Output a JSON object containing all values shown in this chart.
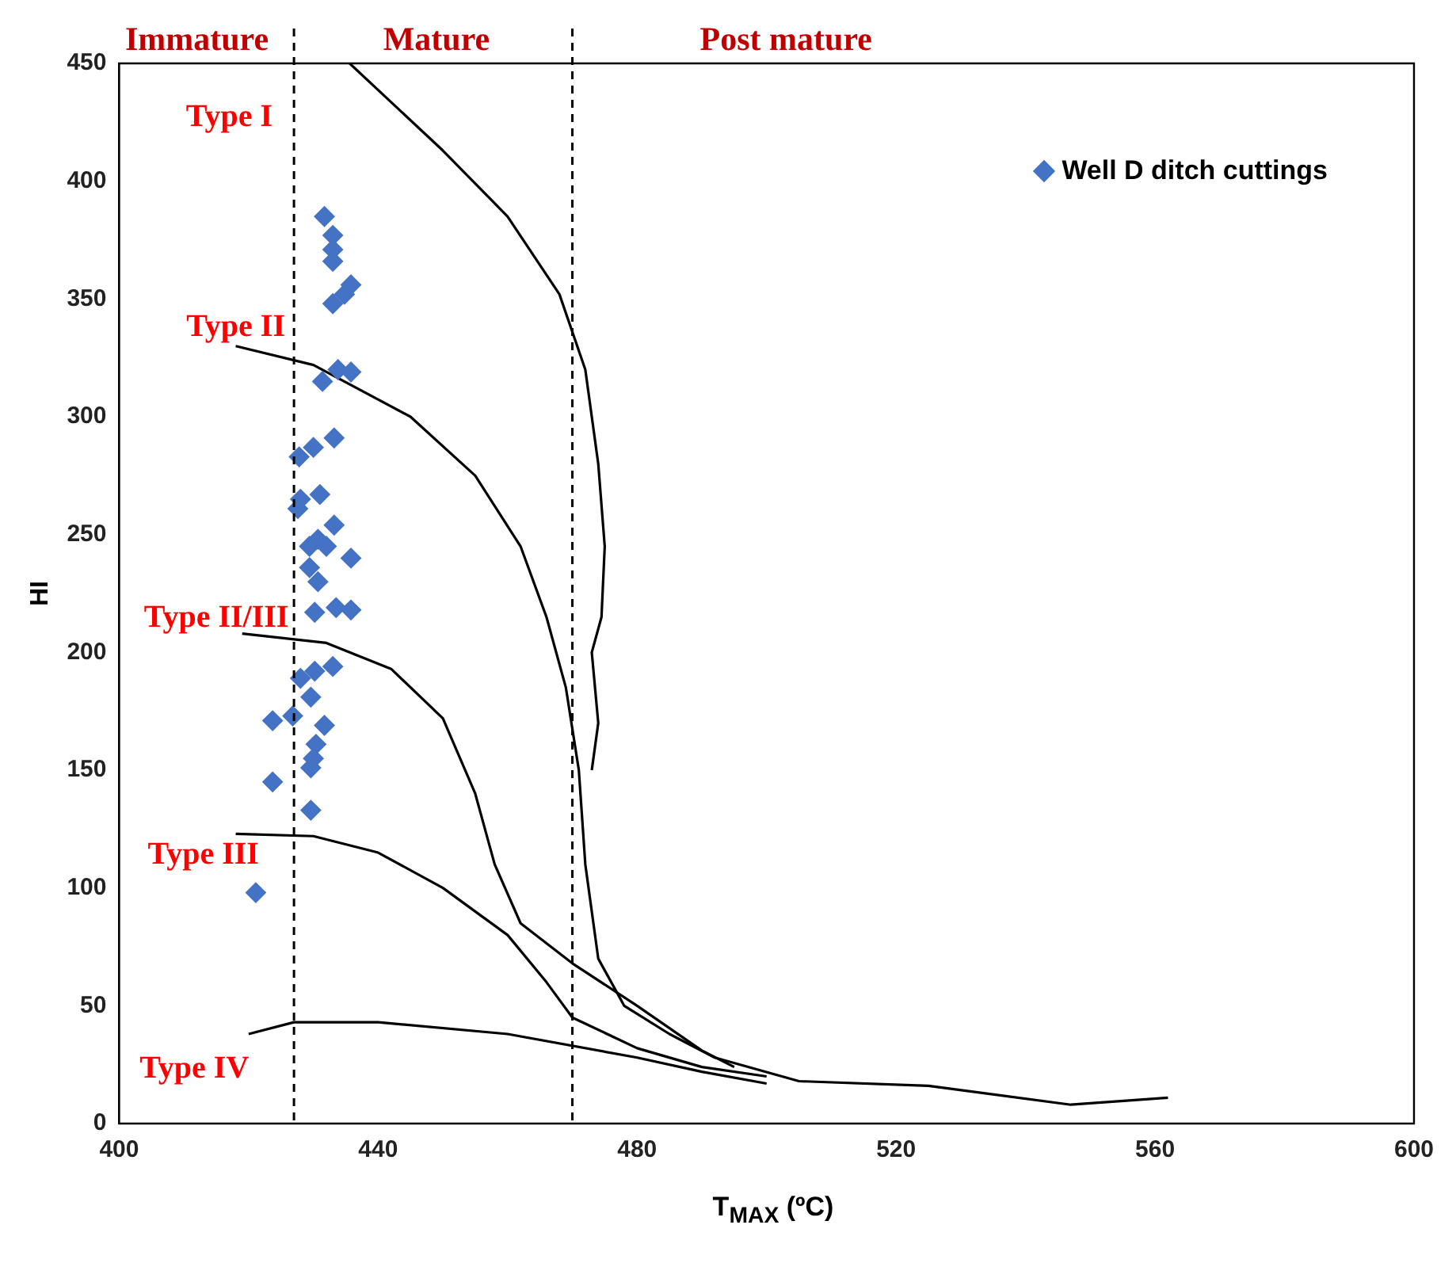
{
  "chart_data": {
    "type": "scatter",
    "xlabel": "T$_{MAX}$ (ºC)",
    "ylabel": "HI",
    "xlim": [
      400,
      600
    ],
    "xticks": [
      400,
      440,
      480,
      520,
      560,
      600
    ],
    "ylim": [
      0,
      450
    ],
    "yticks": [
      0,
      50,
      100,
      150,
      200,
      250,
      300,
      350,
      400,
      450
    ],
    "grid": false,
    "legend": "top right",
    "series": [
      {
        "name": "Well D ditch cuttings",
        "marker": "diamond",
        "color": "#4472c4",
        "x": [
          431.7,
          433,
          433,
          433,
          435.8,
          434.8,
          433,
          435.8,
          433.8,
          431.4,
          433.2,
          430,
          427.8,
          428,
          431,
          427.6,
          433.2,
          430.7,
          429.4,
          432,
          435.8,
          429.4,
          430.7,
          430.2,
          433.5,
          435.8,
          433,
          430.2,
          428,
          429.6,
          423.7,
          426.8,
          431.7,
          430.4,
          430,
          429.6,
          423.7,
          429.6,
          421.1
        ],
        "values": [
          385,
          377,
          371,
          366,
          356,
          352,
          348,
          319,
          320,
          315,
          291,
          287,
          283,
          265,
          267,
          261,
          254,
          248,
          245,
          245,
          240,
          236,
          230,
          217,
          219,
          218,
          194,
          192,
          189,
          181,
          171,
          173,
          169,
          161,
          155,
          151,
          145,
          133,
          98
        ]
      },
      {
        "type": "line",
        "color": "#000000",
        "x": [
          435.6,
          450,
          460,
          468,
          472,
          474,
          475,
          474.5,
          473,
          474,
          473
        ],
        "values": [
          450,
          413,
          385,
          352,
          320,
          280,
          245,
          215,
          200,
          170,
          150
        ]
      },
      {
        "type": "line",
        "color": "#000000",
        "x": [
          418,
          430,
          445,
          455,
          462,
          466,
          469,
          471,
          472,
          474,
          478,
          485,
          492,
          505,
          525,
          547,
          562
        ],
        "values": [
          330,
          322,
          300,
          275,
          245,
          215,
          185,
          150,
          110,
          70,
          50,
          38,
          28,
          18,
          16,
          8,
          11
        ]
      },
      {
        "type": "line",
        "color": "#000000",
        "x": [
          419,
          432,
          442,
          450,
          455,
          458,
          462,
          470,
          480,
          490,
          495
        ],
        "values": [
          208,
          204,
          193,
          172,
          140,
          110,
          85,
          68,
          50,
          31,
          24
        ]
      },
      {
        "type": "line",
        "color": "#000000",
        "x": [
          418,
          430,
          440,
          450,
          460,
          466,
          470,
          480,
          490,
          500
        ],
        "values": [
          123,
          122,
          115,
          100,
          80,
          60,
          45,
          32,
          24,
          20
        ]
      },
      {
        "type": "line",
        "color": "#000000",
        "x": [
          420,
          427,
          440,
          460,
          480,
          490,
          500
        ],
        "values": [
          38,
          43,
          43,
          38,
          28,
          22,
          17
        ]
      }
    ],
    "ref_lines": [
      {
        "axis": "x",
        "value": 427,
        "color": "#000000",
        "line_style": "dashed"
      },
      {
        "axis": "x",
        "value": 470,
        "color": "#000000",
        "line_style": "dashed"
      }
    ],
    "annotations": [
      "Immature",
      "Mature",
      "Post mature",
      "Type I",
      "Type II",
      "Type II/III",
      "Type III",
      "Type IV"
    ]
  }
}
